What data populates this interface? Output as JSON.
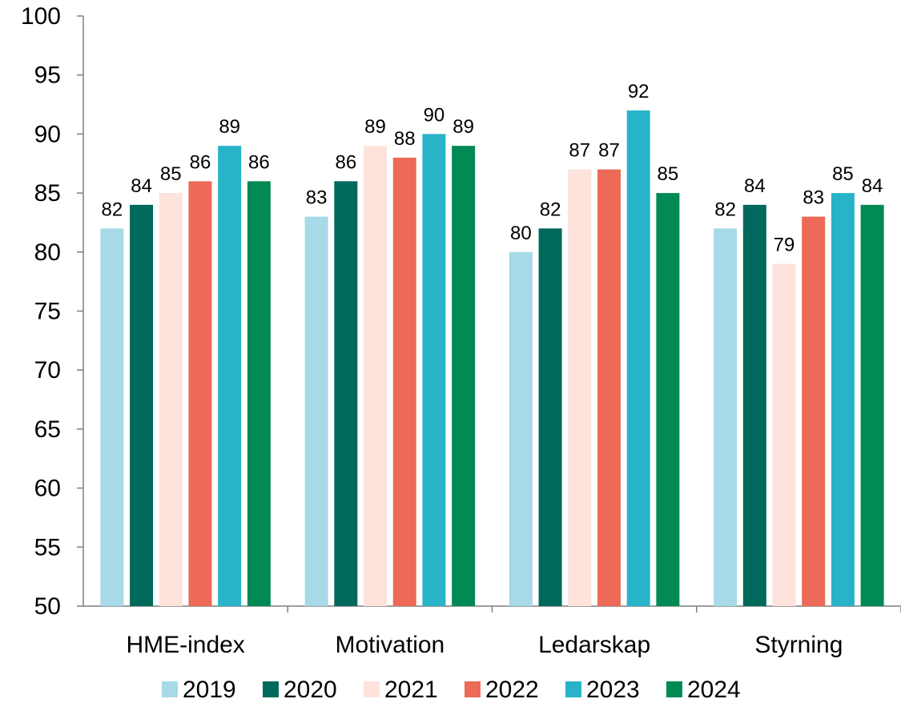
{
  "chart_data": {
    "type": "bar",
    "categories": [
      "HME-index",
      "Motivation",
      "Ledarskap",
      "Styrning"
    ],
    "series": [
      {
        "name": "2019",
        "color": "#A7D9E6",
        "values": [
          82,
          83,
          80,
          82
        ]
      },
      {
        "name": "2020",
        "color": "#00695C",
        "values": [
          84,
          86,
          82,
          84
        ]
      },
      {
        "name": "2021",
        "color": "#FDE3DC",
        "values": [
          85,
          89,
          87,
          79
        ]
      },
      {
        "name": "2022",
        "color": "#EC6A57",
        "values": [
          86,
          88,
          87,
          83
        ]
      },
      {
        "name": "2023",
        "color": "#28B3C8",
        "values": [
          89,
          90,
          92,
          85
        ]
      },
      {
        "name": "2024",
        "color": "#028A55",
        "values": [
          86,
          89,
          85,
          84
        ]
      }
    ],
    "ylim": [
      50,
      100
    ],
    "yticks": [
      50,
      55,
      60,
      65,
      70,
      75,
      80,
      85,
      90,
      95,
      100
    ],
    "grid": false,
    "data_labels": true,
    "legend_position": "bottom",
    "title": "",
    "xlabel": "",
    "ylabel": ""
  }
}
